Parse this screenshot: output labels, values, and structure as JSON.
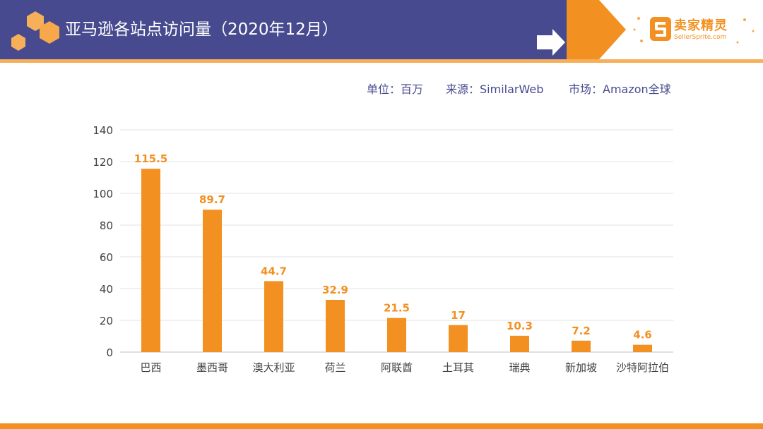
{
  "header": {
    "title": "亚马逊各站点访问量（2020年12月）",
    "band_color": "#474a8e",
    "accent_color": "#f29121"
  },
  "logo": {
    "name": "卖家精灵",
    "subtitle": "SellerSprite.com",
    "icon": "s-logo-icon"
  },
  "meta": {
    "unit": "单位：百万",
    "source": "来源：SimilarWeb",
    "market": "市场：Amazon全球"
  },
  "chart_data": {
    "type": "bar",
    "categories": [
      "巴西",
      "墨西哥",
      "澳大利亚",
      "荷兰",
      "阿联酋",
      "土耳其",
      "瑞典",
      "新加坡",
      "沙特阿拉伯"
    ],
    "values": [
      115.5,
      89.7,
      44.7,
      32.9,
      21.5,
      17,
      10.3,
      7.2,
      4.6
    ],
    "value_labels": [
      "115.5",
      "89.7",
      "44.7",
      "32.9",
      "21.5",
      "17",
      "10.3",
      "7.2",
      "4.6"
    ],
    "title": "",
    "xlabel": "",
    "ylabel": "",
    "ylim": [
      0,
      140
    ],
    "yticks": [
      0,
      20,
      40,
      60,
      80,
      100,
      120,
      140
    ],
    "grid": true,
    "legend": "none",
    "bar_color": "#f29121"
  }
}
